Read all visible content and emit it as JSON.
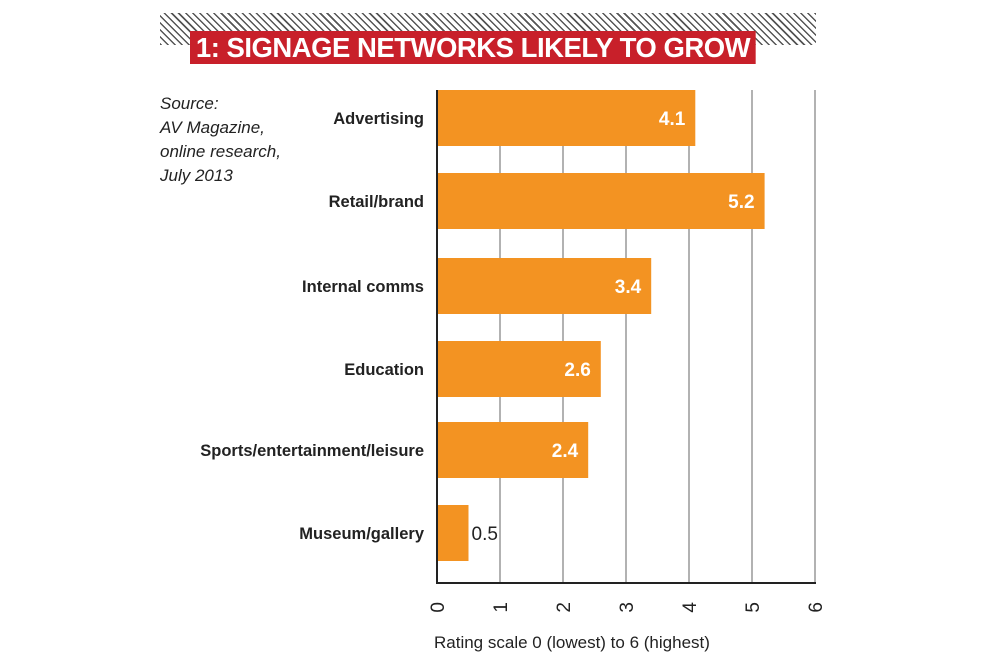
{
  "chart_data": {
    "type": "bar",
    "orientation": "horizontal",
    "title": "1: SIGNAGE NETWORKS LIKELY TO GROW",
    "source": [
      "Source:",
      "AV Magazine,",
      "online research,",
      "July 2013"
    ],
    "categories": [
      "Advertising",
      "Retail/brand",
      "Internal comms",
      "Education",
      "Sports/entertainment/leisure",
      "Museum/gallery"
    ],
    "values": [
      4.1,
      5.2,
      3.4,
      2.6,
      2.4,
      0.5
    ],
    "value_labels": [
      "4.1",
      "5.2",
      "3.4",
      "2.6",
      "2.4",
      "0.5"
    ],
    "xlabel": "Rating scale 0 (lowest) to 6 (highest)",
    "xlim": [
      0,
      6
    ],
    "xticks": [
      "0",
      "1",
      "2",
      "3",
      "4",
      "5",
      "6"
    ],
    "grid": true,
    "colors": {
      "bar": "#f39322",
      "title_bg": "#c8202a"
    }
  }
}
